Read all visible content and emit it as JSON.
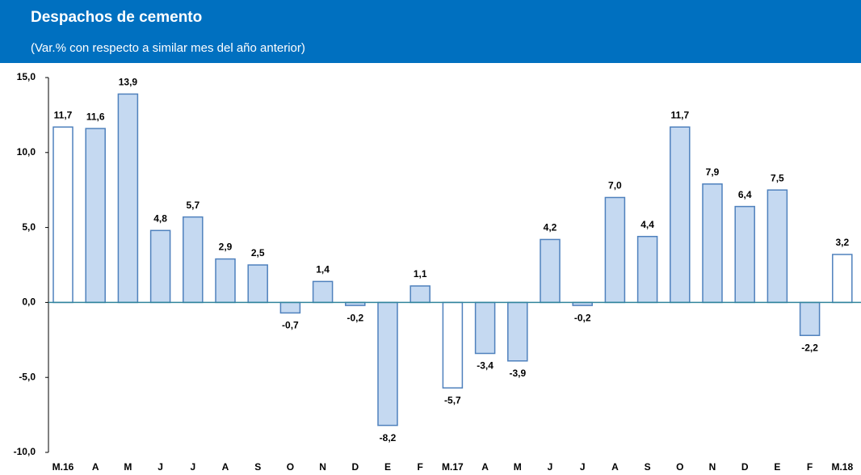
{
  "chart_data": {
    "type": "bar",
    "title": "Despachos de cemento",
    "subtitle": "(Var.% con respecto a similar mes del año anterior)",
    "categories": [
      "M.16",
      "A",
      "M",
      "J",
      "J",
      "A",
      "S",
      "O",
      "N",
      "D",
      "E",
      "F",
      "M.17",
      "A",
      "M",
      "J",
      "J",
      "A",
      "S",
      "O",
      "N",
      "D",
      "E",
      "F",
      "M.18"
    ],
    "values": [
      11.7,
      11.6,
      13.9,
      4.8,
      5.7,
      2.9,
      2.5,
      -0.7,
      1.4,
      -0.2,
      -8.2,
      1.1,
      -5.7,
      -3.4,
      -3.9,
      4.2,
      -0.2,
      7.0,
      4.4,
      11.7,
      7.9,
      6.4,
      7.5,
      -2.2,
      3.2
    ],
    "value_labels": [
      "11,7",
      "11,6",
      "13,9",
      "4,8",
      "5,7",
      "2,9",
      "2,5",
      "-0,7",
      "1,4",
      "-0,2",
      "-8,2",
      "1,1",
      "-5,7",
      "-3,4",
      "-3,9",
      "4,2",
      "-0,2",
      "7,0",
      "4,4",
      "11,7",
      "7,9",
      "6,4",
      "7,5",
      "-2,2",
      "3,2"
    ],
    "colors": [
      "#ffffff",
      "#c5d9f1",
      "#c5d9f1",
      "#c5d9f1",
      "#c5d9f1",
      "#c5d9f1",
      "#c5d9f1",
      "#c5d9f1",
      "#c5d9f1",
      "#c5d9f1",
      "#c5d9f1",
      "#c5d9f1",
      "#ffffff",
      "#c5d9f1",
      "#c5d9f1",
      "#c5d9f1",
      "#c5d9f1",
      "#c5d9f1",
      "#c5d9f1",
      "#c5d9f1",
      "#c5d9f1",
      "#c5d9f1",
      "#c5d9f1",
      "#c5d9f1",
      "#ffffff"
    ],
    "edge_color": "#4f81bd",
    "ylim": [
      -10,
      15
    ],
    "yticks": [
      {
        "value": -10,
        "label": "-10,0"
      },
      {
        "value": -5,
        "label": "-5,0"
      },
      {
        "value": 0,
        "label": "0,0"
      },
      {
        "value": 5,
        "label": "5,0"
      },
      {
        "value": 10,
        "label": "10,0"
      },
      {
        "value": 15,
        "label": "15,0"
      }
    ],
    "grid": false
  }
}
